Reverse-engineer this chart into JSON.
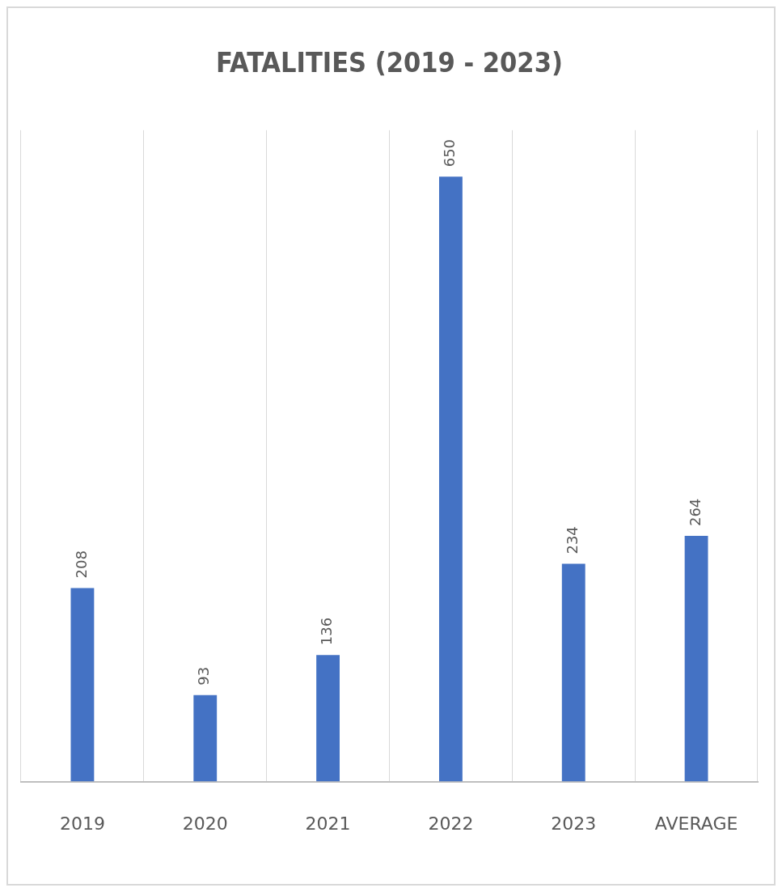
{
  "chart_data": {
    "type": "bar",
    "title": "FATALITIES (2019 - 2023)",
    "categories": [
      "2019",
      "2020",
      "2021",
      "2022",
      "2023",
      "AVERAGE"
    ],
    "values": [
      208,
      93,
      136,
      650,
      234,
      264
    ],
    "color": "#4472c4",
    "tick_labels": "x",
    "data_labels": true,
    "grid": "x",
    "legend": false
  }
}
